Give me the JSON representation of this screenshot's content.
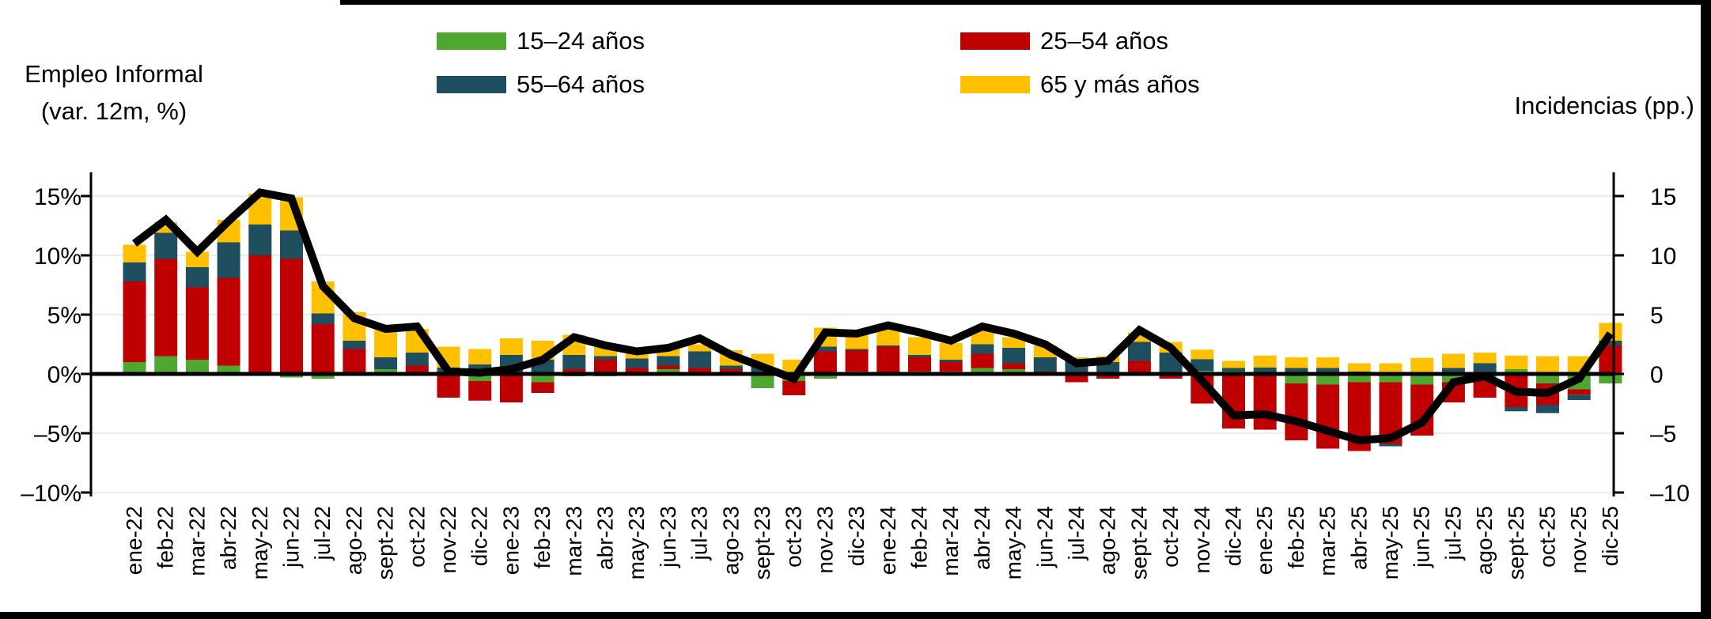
{
  "titles": {
    "left_line1": "Empleo Informal",
    "left_line2": "(var. 12m, %)",
    "right": "Incidencias (pp.)"
  },
  "chart_data": {
    "type": "combo",
    "bar_mode": "stacked",
    "legend_position": "top",
    "grid": true,
    "categories": [
      "ene-22",
      "feb-22",
      "mar-22",
      "abr-22",
      "may-22",
      "jun-22",
      "jul-22",
      "ago-22",
      "sept-22",
      "oct-22",
      "nov-22",
      "dic-22",
      "ene-23",
      "feb-23",
      "mar-23",
      "abr-23",
      "may-23",
      "jun-23",
      "jul-23",
      "ago-23",
      "sept-23",
      "oct-23",
      "nov-23",
      "dic-23",
      "ene-24",
      "feb-24",
      "mar-24",
      "abr-24",
      "may-24",
      "jun-24",
      "jul-24",
      "ago-24",
      "sept-24",
      "oct-24",
      "nov-24",
      "dic-24",
      "ene-25",
      "feb-25",
      "mar-25",
      "abr-25",
      "may-25",
      "jun-25",
      "jul-25",
      "ago-25",
      "sept-25",
      "oct-25",
      "nov-25",
      "dic-25"
    ],
    "series": [
      {
        "name": "15–24 años",
        "type": "bar",
        "color": "#4EA72E",
        "values": [
          1.0,
          1.5,
          1.2,
          0.7,
          0.1,
          -0.3,
          -0.4,
          0.1,
          0.4,
          0.15,
          0,
          -0.6,
          -0.1,
          -0.7,
          -0.2,
          -0.2,
          0,
          0.4,
          0,
          0,
          -1.2,
          -0.6,
          -0.4,
          0.2,
          0,
          0.2,
          0.2,
          0.5,
          0.4,
          0,
          0,
          -0.1,
          0,
          0,
          0.25,
          0.2,
          0.15,
          -0.8,
          -0.9,
          -0.7,
          -0.7,
          -0.9,
          -0.7,
          -0.5,
          0.4,
          -0.8,
          -1.3,
          -0.8
        ]
      },
      {
        "name": "25–54 años",
        "type": "bar",
        "color": "#C00000",
        "values": [
          6.8,
          8.2,
          6.1,
          7.4,
          9.9,
          9.7,
          4.2,
          2.0,
          0,
          0.55,
          -2.0,
          -1.65,
          -2.3,
          -0.9,
          0.4,
          1.2,
          0.5,
          0.3,
          0.5,
          0.4,
          0,
          -1.2,
          1.9,
          1.8,
          2.3,
          1.2,
          0.8,
          1.2,
          0.5,
          0.2,
          -0.7,
          -0.3,
          1.1,
          -0.4,
          -2.5,
          -4.6,
          -4.7,
          -4.8,
          -5.4,
          -5.8,
          -5.2,
          -4.3,
          -1.7,
          -1.5,
          -2.8,
          -1.8,
          -0.45,
          2.4
        ]
      },
      {
        "name": "55–64 años",
        "type": "bar",
        "color": "#1F4E5F",
        "values": [
          1.6,
          2.2,
          1.7,
          3.0,
          2.6,
          2.4,
          0.9,
          0.7,
          1.0,
          1.1,
          0.55,
          0.8,
          1.6,
          1.2,
          1.2,
          0.3,
          0.8,
          0.8,
          1.4,
          0.3,
          0.6,
          0,
          0.4,
          0.1,
          0.1,
          0.2,
          0.2,
          0.8,
          1.3,
          1.2,
          1.1,
          1.0,
          1.6,
          1.8,
          1.0,
          0.3,
          0.4,
          0.5,
          0.5,
          0.2,
          -0.2,
          0.15,
          0.5,
          0.9,
          -0.35,
          -0.7,
          -0.45,
          0.4
        ]
      },
      {
        "name": "65 y más años",
        "type": "bar",
        "color": "#FFC000",
        "values": [
          1.5,
          0.9,
          1.3,
          1.9,
          2.6,
          2.8,
          2.7,
          2.4,
          2.3,
          2.0,
          1.75,
          1.3,
          1.4,
          1.6,
          1.7,
          0.8,
          0.9,
          0.8,
          0.6,
          1.3,
          1.1,
          1.2,
          1.6,
          1.2,
          1.7,
          1.5,
          1.4,
          1.2,
          0.9,
          1.0,
          0.3,
          0.5,
          0.8,
          0.9,
          0.8,
          0.6,
          1.0,
          0.9,
          0.9,
          0.7,
          0.9,
          1.2,
          1.2,
          0.9,
          1.15,
          1.5,
          1.5,
          1.5
        ]
      },
      {
        "name": "Empleo Informal (var. 12m, %)",
        "type": "line",
        "color": "#000000",
        "values": [
          11.0,
          13.0,
          10.3,
          12.9,
          15.3,
          14.8,
          7.4,
          4.7,
          3.8,
          4.0,
          0.2,
          0.1,
          0.4,
          1.2,
          3.1,
          2.4,
          1.9,
          2.2,
          3.0,
          1.6,
          0.6,
          -0.4,
          3.5,
          3.4,
          4.1,
          3.5,
          2.8,
          4.0,
          3.4,
          2.5,
          0.9,
          1.1,
          3.7,
          2.2,
          -0.6,
          -3.5,
          -3.4,
          -4.0,
          -4.8,
          -5.6,
          -5.4,
          -4.1,
          -0.7,
          -0.2,
          -1.5,
          -1.6,
          -0.4,
          3.4
        ]
      }
    ],
    "left_axis": {
      "title": "Empleo Informal (var. 12m, %)",
      "tick_labels": [
        "15%",
        "10%",
        "5%",
        "0%",
        "–5%",
        "–10%"
      ],
      "tick_values": [
        15,
        10,
        5,
        0,
        -5,
        -10
      ],
      "range": [
        -10,
        15
      ]
    },
    "right_axis": {
      "title": "Incidencias (pp.)",
      "tick_labels": [
        "15",
        "10",
        "5",
        "0",
        "–5",
        "–10"
      ],
      "tick_values": [
        15,
        10,
        5,
        0,
        -5,
        -10
      ],
      "range": [
        -10,
        15
      ]
    }
  }
}
